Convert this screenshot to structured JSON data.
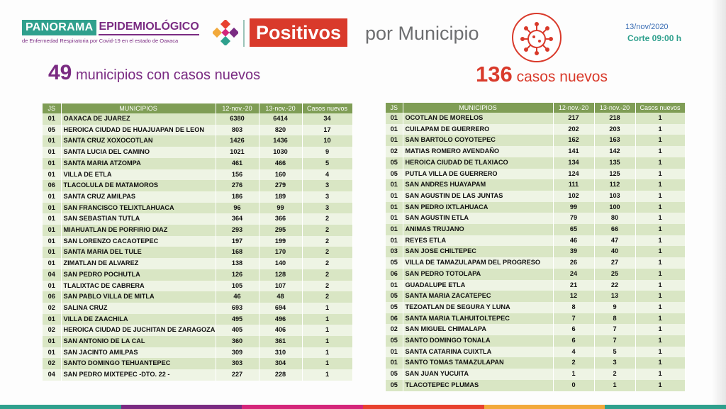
{
  "header": {
    "brand_panorama": "PANORAMA",
    "brand_epidemiologico": "EPIDEMIOLÓGICO",
    "brand_subtitle": "de Enfermedad Respiratoria por Covid-19 en el estado de Oaxaca",
    "positivos": "Positivos",
    "por_municipio": "por Municipio",
    "date": "13/nov/2020",
    "corte": "Corte 09:00 h",
    "icons": [
      "logo-icon",
      "virus-icon"
    ]
  },
  "summary": {
    "municipios_number": "49",
    "municipios_text": "municipios con casos nuevos",
    "casos_number": "136",
    "casos_text": "casos nuevos"
  },
  "columns": {
    "js": "JS",
    "municipios": "MUNICIPIOS",
    "col1": "12-nov.-20",
    "col2": "13-nov.-20",
    "nuevos": "Casos nuevos"
  },
  "colors": {
    "purple": "#7a2b82",
    "teal": "#2fa08d",
    "red": "#d93a2b",
    "header_green": "#7f9d55"
  },
  "left_table": [
    [
      "01",
      "OAXACA DE JUAREZ",
      "6380",
      "6414",
      "34"
    ],
    [
      "05",
      "HEROICA CIUDAD DE HUAJUAPAN DE LEON",
      "803",
      "820",
      "17"
    ],
    [
      "01",
      "SANTA CRUZ XOXOCOTLAN",
      "1426",
      "1436",
      "10"
    ],
    [
      "01",
      "SANTA LUCIA DEL CAMINO",
      "1021",
      "1030",
      "9"
    ],
    [
      "01",
      "SANTA MARIA ATZOMPA",
      "461",
      "466",
      "5"
    ],
    [
      "01",
      "VILLA DE ETLA",
      "156",
      "160",
      "4"
    ],
    [
      "06",
      "TLACOLULA DE MATAMOROS",
      "276",
      "279",
      "3"
    ],
    [
      "01",
      "SANTA CRUZ AMILPAS",
      "186",
      "189",
      "3"
    ],
    [
      "01",
      "SAN FRANCISCO TELIXTLAHUACA",
      "96",
      "99",
      "3"
    ],
    [
      "01",
      "SAN SEBASTIAN TUTLA",
      "364",
      "366",
      "2"
    ],
    [
      "01",
      "MIAHUATLAN DE PORFIRIO DIAZ",
      "293",
      "295",
      "2"
    ],
    [
      "01",
      "SAN LORENZO CACAOTEPEC",
      "197",
      "199",
      "2"
    ],
    [
      "01",
      "SANTA MARIA DEL TULE",
      "168",
      "170",
      "2"
    ],
    [
      "01",
      "ZIMATLAN DE ALVAREZ",
      "138",
      "140",
      "2"
    ],
    [
      "04",
      "SAN PEDRO POCHUTLA",
      "126",
      "128",
      "2"
    ],
    [
      "01",
      "TLALIXTAC DE CABRERA",
      "105",
      "107",
      "2"
    ],
    [
      "06",
      "SAN PABLO VILLA DE MITLA",
      "46",
      "48",
      "2"
    ],
    [
      "02",
      "SALINA CRUZ",
      "693",
      "694",
      "1"
    ],
    [
      "01",
      "VILLA DE ZAACHILA",
      "495",
      "496",
      "1"
    ],
    [
      "02",
      "HEROICA CIUDAD DE JUCHITAN DE ZARAGOZA",
      "405",
      "406",
      "1"
    ],
    [
      "01",
      "SAN ANTONIO DE LA CAL",
      "360",
      "361",
      "1"
    ],
    [
      "01",
      "SAN JACINTO AMILPAS",
      "309",
      "310",
      "1"
    ],
    [
      "02",
      "SANTO DOMINGO TEHUANTEPEC",
      "303",
      "304",
      "1"
    ],
    [
      "04",
      "SAN PEDRO MIXTEPEC -DTO. 22 -",
      "227",
      "228",
      "1"
    ]
  ],
  "right_table": [
    [
      "01",
      "OCOTLAN DE MORELOS",
      "217",
      "218",
      "1"
    ],
    [
      "01",
      "CUILAPAM DE GUERRERO",
      "202",
      "203",
      "1"
    ],
    [
      "01",
      "SAN BARTOLO COYOTEPEC",
      "162",
      "163",
      "1"
    ],
    [
      "02",
      "MATIAS ROMERO AVENDAÑO",
      "141",
      "142",
      "1"
    ],
    [
      "05",
      "HEROICA CIUDAD DE TLAXIACO",
      "134",
      "135",
      "1"
    ],
    [
      "05",
      "PUTLA VILLA DE GUERRERO",
      "124",
      "125",
      "1"
    ],
    [
      "01",
      "SAN ANDRES HUAYAPAM",
      "111",
      "112",
      "1"
    ],
    [
      "01",
      "SAN AGUSTIN DE LAS JUNTAS",
      "102",
      "103",
      "1"
    ],
    [
      "01",
      "SAN PEDRO IXTLAHUACA",
      "99",
      "100",
      "1"
    ],
    [
      "01",
      "SAN AGUSTIN ETLA",
      "79",
      "80",
      "1"
    ],
    [
      "01",
      "ANIMAS TRUJANO",
      "65",
      "66",
      "1"
    ],
    [
      "01",
      "REYES ETLA",
      "46",
      "47",
      "1"
    ],
    [
      "03",
      "SAN JOSE CHILTEPEC",
      "39",
      "40",
      "1"
    ],
    [
      "05",
      "VILLA DE TAMAZULAPAM DEL PROGRESO",
      "26",
      "27",
      "1"
    ],
    [
      "06",
      "SAN PEDRO TOTOLAPA",
      "24",
      "25",
      "1"
    ],
    [
      "01",
      "GUADALUPE ETLA",
      "21",
      "22",
      "1"
    ],
    [
      "05",
      "SANTA MARIA ZACATEPEC",
      "12",
      "13",
      "1"
    ],
    [
      "05",
      "TEZOATLAN DE SEGURA Y LUNA",
      "8",
      "9",
      "1"
    ],
    [
      "06",
      "SANTA MARIA TLAHUITOLTEPEC",
      "7",
      "8",
      "1"
    ],
    [
      "02",
      "SAN MIGUEL CHIMALAPA",
      "6",
      "7",
      "1"
    ],
    [
      "05",
      "SANTO DOMINGO TONALA",
      "6",
      "7",
      "1"
    ],
    [
      "01",
      "SANTA CATARINA CUIXTLA",
      "4",
      "5",
      "1"
    ],
    [
      "01",
      "SANTO TOMAS TAMAZULAPAN",
      "2",
      "3",
      "1"
    ],
    [
      "05",
      "SAN JUAN YUCUITA",
      "1",
      "2",
      "1"
    ],
    [
      "05",
      "TLACOTEPEC PLUMAS",
      "0",
      "1",
      "1"
    ]
  ]
}
